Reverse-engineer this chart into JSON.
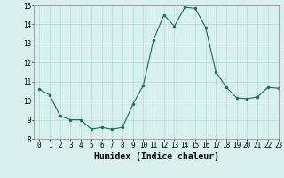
{
  "x": [
    0,
    1,
    2,
    3,
    4,
    5,
    6,
    7,
    8,
    9,
    10,
    11,
    12,
    13,
    14,
    15,
    16,
    17,
    18,
    19,
    20,
    21,
    22,
    23
  ],
  "y": [
    10.6,
    10.3,
    9.2,
    9.0,
    9.0,
    8.5,
    8.6,
    8.5,
    8.6,
    9.8,
    10.8,
    13.2,
    14.5,
    13.9,
    14.9,
    14.85,
    13.85,
    11.5,
    10.7,
    10.15,
    10.1,
    10.2,
    10.7,
    10.65
  ],
  "xlabel": "Humidex (Indice chaleur)",
  "ylim": [
    8,
    15
  ],
  "xlim": [
    -0.5,
    23
  ],
  "yticks": [
    8,
    9,
    10,
    11,
    12,
    13,
    14,
    15
  ],
  "xticks": [
    0,
    1,
    2,
    3,
    4,
    5,
    6,
    7,
    8,
    9,
    10,
    11,
    12,
    13,
    14,
    15,
    16,
    17,
    18,
    19,
    20,
    21,
    22,
    23
  ],
  "line_color": "#1a6b5a",
  "marker_color": "#1a6b5a",
  "bg_color": "#d8f0ee",
  "grid_color": "#aad4cf",
  "xlabel_fontsize": 7,
  "tick_fontsize": 5.5,
  "linewidth": 0.8,
  "markersize": 2.0
}
